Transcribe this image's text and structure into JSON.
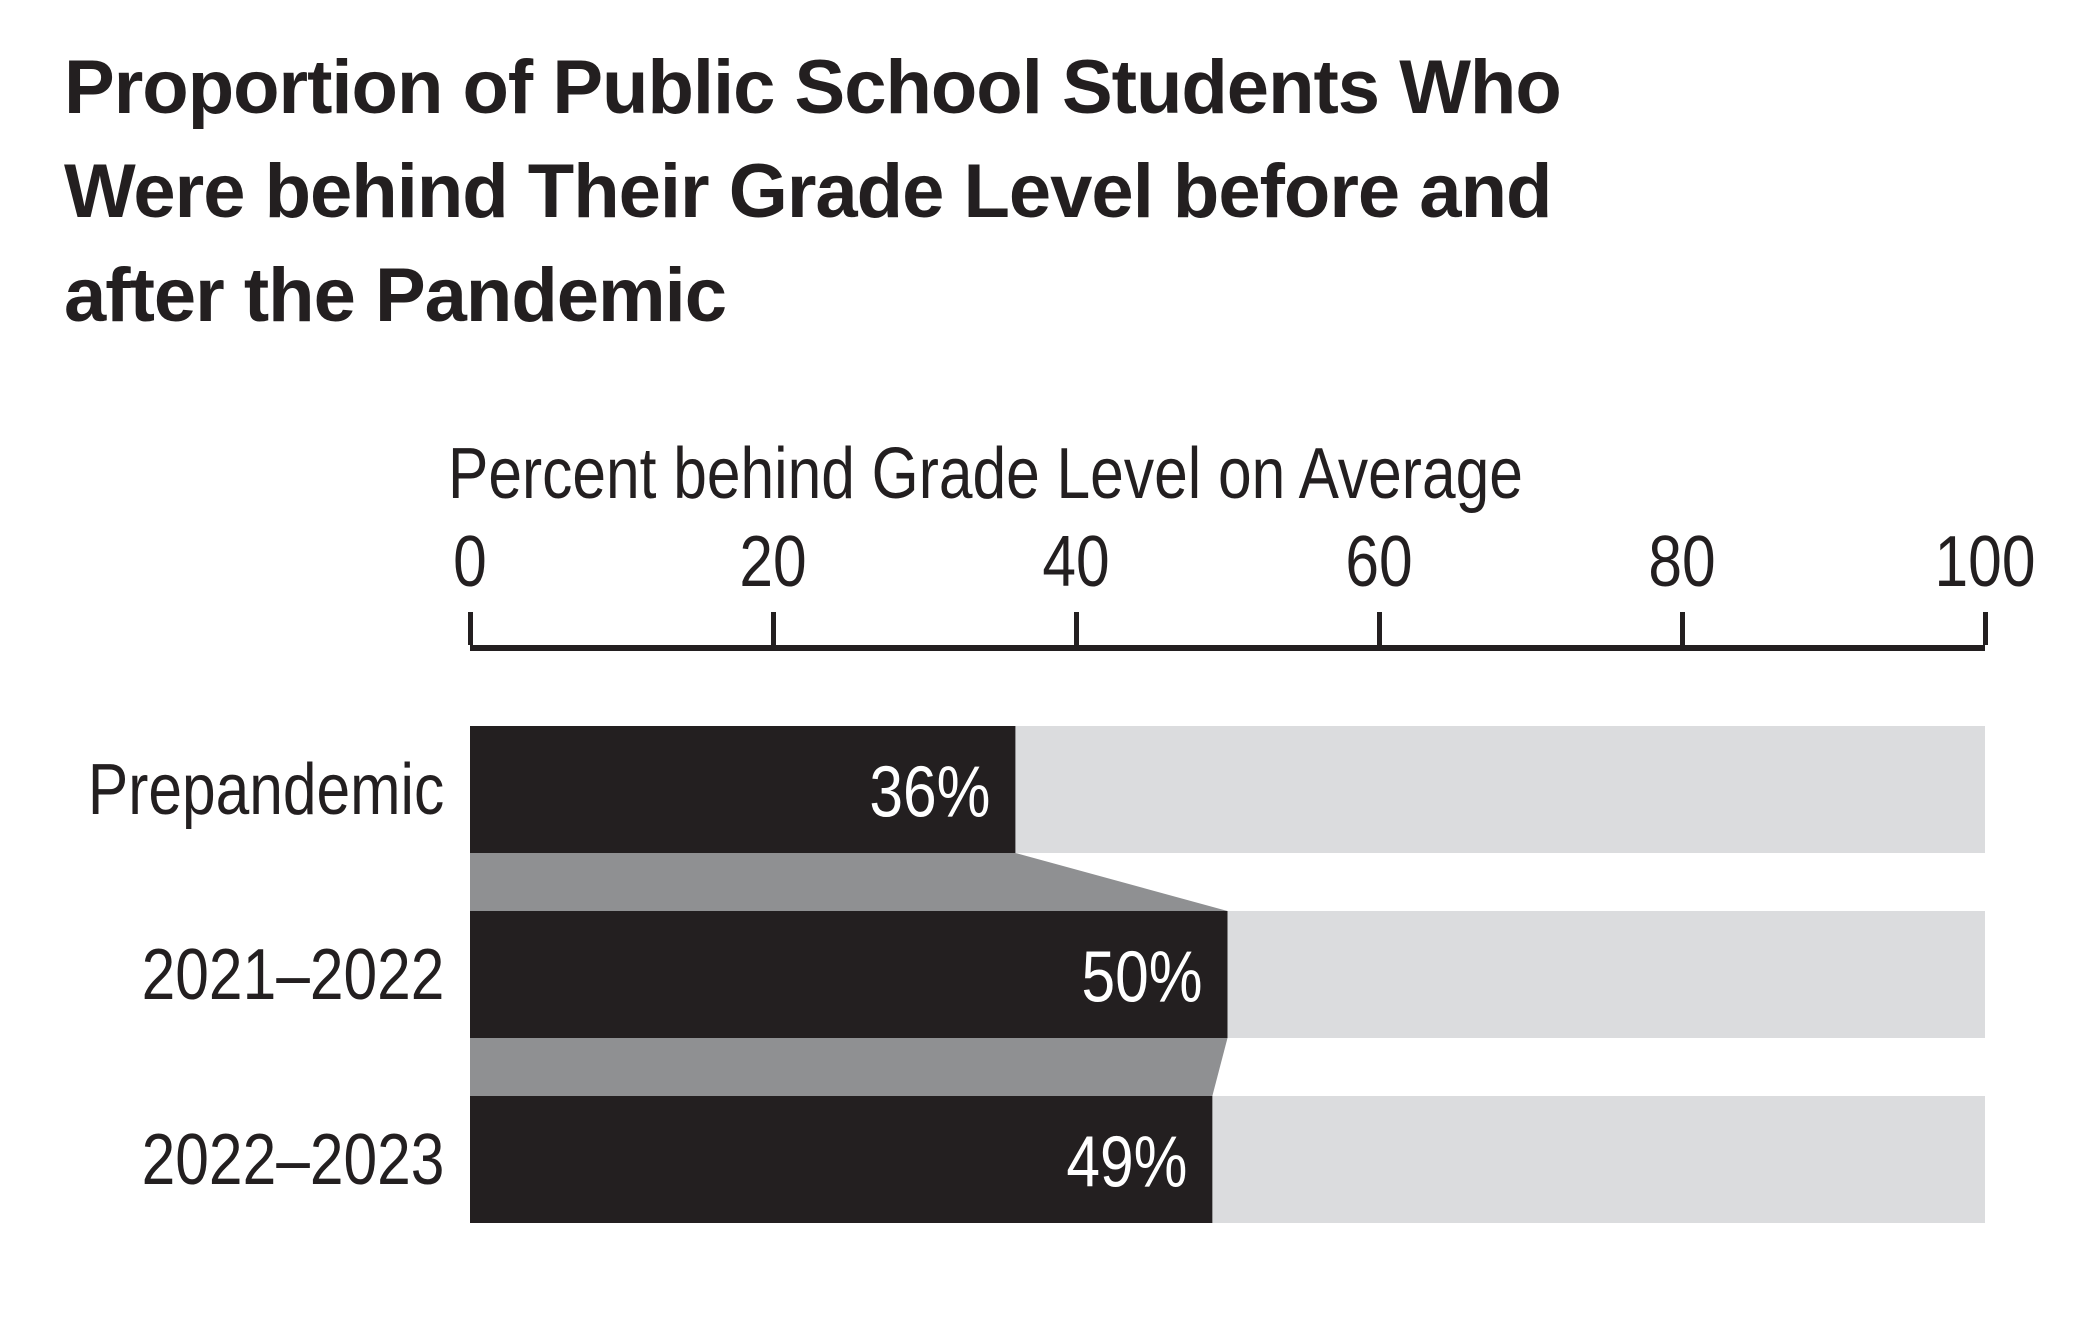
{
  "title": {
    "lines": [
      "Proportion of Public School Students Who",
      "Were behind Their Grade Level before and",
      "after the Pandemic"
    ]
  },
  "chart_data": {
    "type": "bar",
    "orientation": "horizontal",
    "axis_title": "Percent behind Grade Level on Average",
    "categories": [
      "Prepandemic",
      "2021–2022",
      "2022–2023"
    ],
    "values": [
      36,
      50,
      49
    ],
    "value_labels": [
      "36%",
      "50%",
      "49%"
    ],
    "xticks": [
      0,
      20,
      40,
      60,
      80,
      100
    ],
    "xlim": [
      0,
      100
    ],
    "grid": false,
    "legend": "none",
    "colors": {
      "bar": "#231f20",
      "connector": "#8f9092",
      "track": "#dbdcde",
      "value_text": "#ffffff",
      "axis": "#231f20"
    }
  }
}
